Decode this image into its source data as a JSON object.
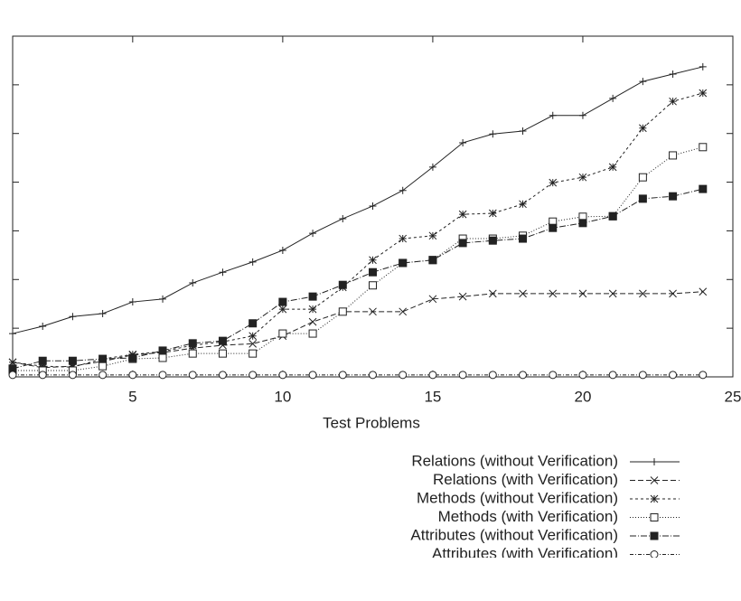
{
  "chart_data": {
    "type": "line",
    "x_label": "Test Problems",
    "x": [
      1,
      2,
      3,
      4,
      5,
      6,
      7,
      8,
      9,
      10,
      11,
      12,
      13,
      14,
      15,
      16,
      17,
      18,
      19,
      20,
      21,
      22,
      23,
      24
    ],
    "xlim": [
      1,
      25
    ],
    "xticks": [
      5,
      10,
      15,
      20,
      25
    ],
    "ylim": [
      0,
      7
    ],
    "yticks": [
      0,
      1,
      2,
      3,
      4,
      5,
      6,
      7
    ],
    "legend": "lower right",
    "series": [
      {
        "name": "Relations (without Verification)",
        "color": "#222",
        "marker": "plus",
        "dash": "none",
        "values": [
          0.89,
          1.04,
          1.24,
          1.3,
          1.54,
          1.6,
          1.93,
          2.15,
          2.36,
          2.6,
          2.95,
          3.25,
          3.51,
          3.83,
          4.31,
          4.81,
          4.99,
          5.05,
          5.37,
          5.37,
          5.72,
          6.07,
          6.22,
          6.37
        ]
      },
      {
        "name": "Relations (with Verification)",
        "color": "#222",
        "marker": "cross",
        "dash": "6,3",
        "values": [
          0.3,
          0.19,
          0.22,
          0.32,
          0.45,
          0.5,
          0.59,
          0.65,
          0.68,
          0.84,
          1.13,
          1.34,
          1.34,
          1.34,
          1.6,
          1.65,
          1.71,
          1.71,
          1.71,
          1.71,
          1.71,
          1.71,
          1.71,
          1.75
        ]
      },
      {
        "name": "Methods (without Verification)",
        "color": "#222",
        "marker": "star",
        "dash": "3,3",
        "values": [
          0.3,
          0.22,
          0.2,
          0.37,
          0.46,
          0.52,
          0.65,
          0.72,
          0.84,
          1.39,
          1.39,
          1.84,
          2.4,
          2.84,
          2.9,
          3.34,
          3.36,
          3.55,
          3.99,
          4.1,
          4.31,
          5.11,
          5.66,
          5.83
        ]
      },
      {
        "name": "Methods (with Verification)",
        "color": "#222",
        "marker": "square",
        "dash": "1,2",
        "values": [
          0.13,
          0.13,
          0.13,
          0.22,
          0.37,
          0.39,
          0.48,
          0.48,
          0.48,
          0.89,
          0.89,
          1.34,
          1.88,
          2.34,
          2.4,
          2.84,
          2.84,
          2.9,
          3.19,
          3.29,
          3.3,
          4.1,
          4.55,
          4.72
        ]
      },
      {
        "name": "Attributes (without Verification)",
        "color": "#222",
        "marker": "filled-square",
        "dash": "7,2,1,2",
        "values": [
          0.17,
          0.33,
          0.33,
          0.37,
          0.39,
          0.54,
          0.69,
          0.74,
          1.1,
          1.54,
          1.65,
          1.89,
          2.15,
          2.34,
          2.4,
          2.75,
          2.8,
          2.84,
          3.06,
          3.16,
          3.3,
          3.66,
          3.71,
          3.86
        ]
      },
      {
        "name": "Attributes (with Verification)",
        "color": "#222",
        "marker": "circle",
        "dash": "4,2,1,2",
        "values": [
          0.04,
          0.04,
          0.04,
          0.04,
          0.04,
          0.04,
          0.04,
          0.04,
          0.04,
          0.04,
          0.04,
          0.04,
          0.04,
          0.04,
          0.04,
          0.04,
          0.04,
          0.04,
          0.04,
          0.04,
          0.04,
          0.04,
          0.04,
          0.04
        ]
      }
    ]
  }
}
